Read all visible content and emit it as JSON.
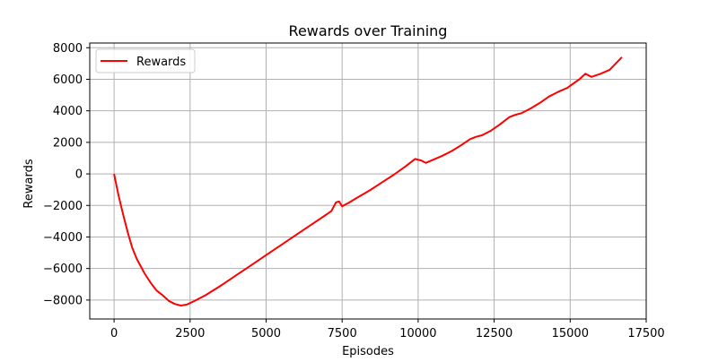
{
  "chart_data": {
    "type": "line",
    "title": "Rewards over Training",
    "xlabel": "Episodes",
    "ylabel": "Rewards",
    "xlim": [
      -800,
      17500
    ],
    "ylim": [
      -9200,
      8300
    ],
    "xticks": [
      0,
      2500,
      5000,
      7500,
      10000,
      12500,
      15000,
      17500
    ],
    "yticks": [
      -8000,
      -6000,
      -4000,
      -2000,
      0,
      2000,
      4000,
      6000,
      8000
    ],
    "xtick_labels": [
      "0",
      "2500",
      "5000",
      "7500",
      "10000",
      "12500",
      "15000",
      "17500"
    ],
    "ytick_labels": [
      "−8000",
      "−6000",
      "−4000",
      "−2000",
      "0",
      "2000",
      "4000",
      "6000",
      "8000"
    ],
    "grid": true,
    "legend": {
      "placement": "top-left",
      "entries": [
        "Rewards"
      ]
    },
    "series": [
      {
        "name": "Rewards",
        "color": "#ff0000",
        "x": [
          0,
          150,
          300,
          450,
          600,
          750,
          1000,
          1200,
          1400,
          1600,
          1800,
          2000,
          2200,
          2400,
          2600,
          3000,
          3500,
          4000,
          4500,
          5000,
          5500,
          6000,
          6500,
          7000,
          7150,
          7300,
          7400,
          7500,
          7700,
          8000,
          8400,
          8800,
          9200,
          9600,
          9900,
          10100,
          10250,
          10500,
          10800,
          11100,
          11400,
          11700,
          11900,
          12100,
          12400,
          12700,
          13000,
          13200,
          13400,
          13700,
          14000,
          14300,
          14600,
          14900,
          15300,
          15500,
          15700,
          16000,
          16300,
          16700
        ],
        "y": [
          0,
          -1400,
          -2600,
          -3700,
          -4700,
          -5400,
          -6300,
          -6900,
          -7400,
          -7700,
          -8050,
          -8250,
          -8350,
          -8280,
          -8100,
          -7700,
          -7100,
          -6450,
          -5800,
          -5150,
          -4500,
          -3850,
          -3200,
          -2550,
          -2350,
          -1800,
          -1750,
          -2050,
          -1850,
          -1500,
          -1050,
          -550,
          -50,
          500,
          950,
          850,
          700,
          900,
          1150,
          1450,
          1800,
          2200,
          2350,
          2450,
          2750,
          3150,
          3600,
          3750,
          3850,
          4150,
          4500,
          4900,
          5200,
          5450,
          6000,
          6350,
          6150,
          6350,
          6600,
          7400
        ]
      }
    ]
  }
}
